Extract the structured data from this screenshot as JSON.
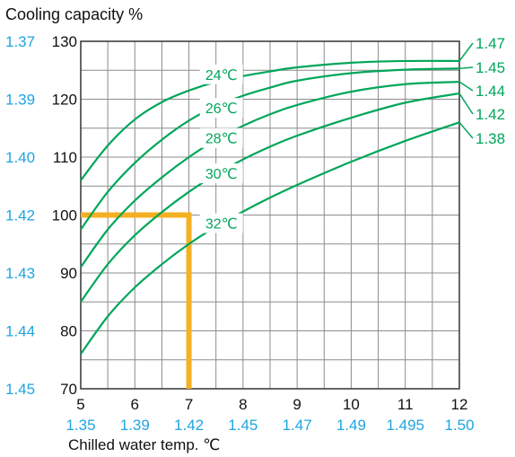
{
  "chart_data": {
    "type": "line",
    "title": "Cooling capacity %",
    "xlabel": "Chilled water temp. ℃",
    "ylabel": "Cooling capacity %",
    "xlim": [
      5,
      12
    ],
    "ylim": [
      70,
      130
    ],
    "grid": true,
    "x_ticks": [
      5,
      5.5,
      6,
      6.5,
      7,
      7.5,
      8,
      8.5,
      9,
      9.5,
      10,
      10.5,
      11,
      11.5,
      12
    ],
    "x_tick_labels": [
      "5",
      "6",
      "7",
      "8",
      "9",
      "10",
      "11",
      "12"
    ],
    "y_ticks": [
      70,
      75,
      80,
      85,
      90,
      95,
      100,
      105,
      110,
      115,
      120,
      125,
      130
    ],
    "y_tick_labels": [
      "130",
      "120",
      "110",
      "100",
      "90",
      "80",
      "70"
    ],
    "x_secondary_labels": [
      "1.35",
      "1.39",
      "1.42",
      "1.45",
      "1.47",
      "1.49",
      "1.495",
      "1.50"
    ],
    "y_secondary_labels": [
      "1.37",
      "1.39",
      "1.40",
      "1.42",
      "1.43",
      "1.44",
      "1.45"
    ],
    "right_end_labels": [
      "1.47",
      "1.45",
      "1.44",
      "1.42",
      "1.38"
    ],
    "series": [
      {
        "name": "24℃",
        "x": [
          5,
          5.5,
          6,
          6.5,
          7,
          7.5,
          8,
          8.5,
          9,
          10,
          11,
          12
        ],
        "y": [
          106,
          112,
          116.5,
          119.5,
          121.5,
          123,
          124,
          124.8,
          125.5,
          126.3,
          126.6,
          126.6
        ]
      },
      {
        "name": "26℃",
        "x": [
          5,
          5.5,
          6,
          6.5,
          7,
          7.5,
          8,
          8.5,
          9,
          10,
          11,
          12
        ],
        "y": [
          97.5,
          104,
          109,
          113,
          116.3,
          118.8,
          120.6,
          122,
          123.2,
          124.5,
          125.1,
          125.3
        ]
      },
      {
        "name": "28℃",
        "x": [
          5,
          5.5,
          6,
          6.5,
          7,
          7.5,
          8,
          8.5,
          9,
          10,
          11,
          12
        ],
        "y": [
          91,
          97.5,
          102.5,
          106.5,
          110,
          113,
          115.4,
          117.4,
          119,
          121.3,
          122.6,
          123
        ]
      },
      {
        "name": "30℃",
        "x": [
          5,
          5.5,
          6,
          6.5,
          7,
          7.5,
          8,
          8.5,
          9,
          10,
          11,
          12
        ],
        "y": [
          85,
          91.5,
          96.5,
          100.5,
          104,
          107,
          109.6,
          111.8,
          113.7,
          116.8,
          119.4,
          121
        ]
      },
      {
        "name": "32℃",
        "x": [
          5,
          5.5,
          6,
          6.5,
          7,
          7.5,
          8,
          8.5,
          9,
          10,
          11,
          12
        ],
        "y": [
          76,
          82.5,
          87.5,
          91.5,
          95,
          98,
          100.6,
          103,
          105.2,
          109.2,
          112.8,
          116
        ]
      }
    ],
    "series_label_positions": [
      {
        "name": "24℃",
        "x": 7.6,
        "y": 124.3
      },
      {
        "name": "26℃",
        "x": 7.6,
        "y": 118.5
      },
      {
        "name": "28℃",
        "x": 7.6,
        "y": 113.3
      },
      {
        "name": "30℃",
        "x": 7.6,
        "y": 107.2
      },
      {
        "name": "32℃",
        "x": 7.6,
        "y": 98.6
      }
    ],
    "highlight": {
      "x": 7,
      "y": 100,
      "color": "#f5b021"
    },
    "colors": {
      "curve": "#00a65a",
      "secondary_text": "#1fa5e0",
      "grid": "#8c8c8c",
      "axis_text": "#111111"
    }
  }
}
